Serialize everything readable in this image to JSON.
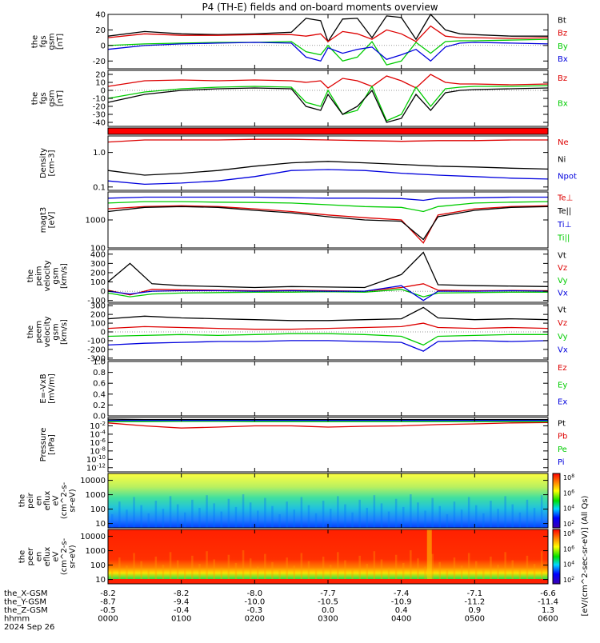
{
  "title": "P4 (TH-E) fields and on-board moments overview",
  "footer": {
    "row_labels": [
      "the_X-GSM",
      "the_Y-GSM",
      "the_Z-GSM",
      "hhmm",
      "2024 Sep 26"
    ],
    "x_gsm": [
      "-8.2",
      "-8.2",
      "-8.0",
      "-7.7",
      "-7.4",
      "-7.1",
      "-6.6"
    ],
    "y_gsm": [
      "-8.7",
      "-9.4",
      "-10.0",
      "-10.5",
      "-10.9",
      "-11.2",
      "-11.4"
    ],
    "z_gsm": [
      "-0.5",
      "-0.4",
      "-0.3",
      "0.0",
      "0.4",
      "0.9",
      "1.3"
    ],
    "hhmm": [
      "0000",
      "0100",
      "0200",
      "0300",
      "0400",
      "0500",
      "0600"
    ]
  },
  "colorbar_label": "[eV/(cm^2-sec-sr-eV)] (All Qs)",
  "colorbar_ticks": [
    "10^8",
    "10^6",
    "10^4",
    "10^2"
  ],
  "colorbar_ticks_2": [
    "10^8",
    "10^6",
    "10^4",
    "10^2"
  ],
  "colors": {
    "black": "#000000",
    "red": "#dd0000",
    "green": "#00cc00",
    "blue": "#0000dd"
  },
  "chart_data": [
    {
      "type": "line",
      "ylabel": [
        "the",
        "fgs",
        "gsm",
        "[nT]"
      ],
      "ylim": [
        -30,
        40
      ],
      "yticks": [
        "40",
        "20",
        "0",
        "-20"
      ],
      "legend": [
        {
          "name": "Bt",
          "color": "#000000"
        },
        {
          "name": "Bz",
          "color": "#dd0000"
        },
        {
          "name": "By",
          "color": "#00cc00"
        },
        {
          "name": "Bx",
          "color": "#0000dd"
        }
      ],
      "x": [
        0,
        0.5,
        1,
        1.5,
        2,
        2.5,
        2.7,
        2.9,
        3.0,
        3.2,
        3.4,
        3.6,
        3.8,
        4.0,
        4.2,
        4.4,
        4.6,
        4.8,
        5.0,
        5.5,
        6.0
      ],
      "series": [
        {
          "name": "Bt",
          "values": [
            12,
            18,
            15,
            14,
            15,
            17,
            35,
            32,
            5,
            34,
            35,
            10,
            38,
            36,
            8,
            40,
            20,
            15,
            14,
            12,
            12
          ]
        },
        {
          "name": "Bz",
          "values": [
            10,
            15,
            13,
            13,
            14,
            14,
            12,
            15,
            5,
            18,
            15,
            8,
            20,
            15,
            5,
            25,
            12,
            10,
            10,
            9,
            10
          ]
        },
        {
          "name": "By",
          "values": [
            0,
            2,
            3,
            4,
            4,
            5,
            -8,
            -12,
            0,
            -20,
            -15,
            5,
            -25,
            -20,
            4,
            -10,
            5,
            6,
            6,
            7,
            8
          ]
        },
        {
          "name": "Bx",
          "values": [
            -5,
            0,
            2,
            3,
            4,
            3,
            -15,
            -20,
            -3,
            -10,
            -5,
            -2,
            -18,
            -12,
            -5,
            -20,
            -2,
            3,
            4,
            3,
            2
          ]
        }
      ]
    },
    {
      "type": "line",
      "ylabel": [
        "the",
        "fgs",
        "gsm",
        "[nT]"
      ],
      "ylim": [
        -45,
        25
      ],
      "yticks": [
        "20",
        "10",
        "0",
        "-10",
        "-20",
        "-30",
        "-40"
      ],
      "legend": [
        {
          "name": "Bz",
          "color": "#dd0000"
        },
        {
          "name": "Bx",
          "color": "#00cc00"
        }
      ],
      "x": [
        0,
        0.5,
        1,
        1.5,
        2,
        2.5,
        2.7,
        2.9,
        3.0,
        3.2,
        3.4,
        3.6,
        3.8,
        4.0,
        4.2,
        4.4,
        4.6,
        4.8,
        5.0,
        5.5,
        6.0
      ],
      "series": [
        {
          "name": "Bz",
          "values": [
            5,
            12,
            13,
            12,
            13,
            12,
            10,
            12,
            3,
            15,
            12,
            5,
            18,
            12,
            3,
            20,
            10,
            8,
            8,
            7,
            8
          ]
        },
        {
          "name": "Bx",
          "values": [
            -10,
            -2,
            2,
            4,
            5,
            4,
            -15,
            -20,
            0,
            -30,
            -25,
            5,
            -38,
            -30,
            4,
            -20,
            2,
            4,
            5,
            5,
            6
          ]
        },
        {
          "name": "black",
          "values": [
            -15,
            -5,
            0,
            2,
            3,
            2,
            -20,
            -25,
            -5,
            -30,
            -20,
            0,
            -40,
            -35,
            -5,
            -25,
            -3,
            0,
            1,
            2,
            3
          ]
        }
      ]
    },
    {
      "type": "line",
      "ylabel": [
        "Density",
        "[cm-3]"
      ],
      "scale": "log",
      "ylim": [
        0.08,
        3
      ],
      "yticks": [
        "1.0",
        "0.1"
      ],
      "legend": [
        {
          "name": "Ne",
          "color": "#dd0000"
        },
        {
          "name": "Ni",
          "color": "#000000"
        },
        {
          "name": "Npot",
          "color": "#0000dd"
        }
      ],
      "x": [
        0,
        0.5,
        1,
        1.5,
        2,
        2.5,
        3.0,
        3.5,
        4.0,
        4.5,
        5.0,
        5.5,
        6.0
      ],
      "series": [
        {
          "name": "Ne",
          "values": [
            2.0,
            2.3,
            2.3,
            2.3,
            2.4,
            2.4,
            2.3,
            2.2,
            2.1,
            2.2,
            2.2,
            2.3,
            2.3
          ]
        },
        {
          "name": "Ni",
          "values": [
            0.3,
            0.22,
            0.25,
            0.3,
            0.4,
            0.5,
            0.55,
            0.5,
            0.45,
            0.4,
            0.38,
            0.35,
            0.33
          ]
        },
        {
          "name": "Npot",
          "values": [
            0.15,
            0.12,
            0.13,
            0.15,
            0.2,
            0.3,
            0.32,
            0.3,
            0.25,
            0.22,
            0.2,
            0.18,
            0.17
          ]
        }
      ]
    },
    {
      "type": "line",
      "ylabel": [
        "magt3",
        "[eV]"
      ],
      "scale": "log",
      "ylim": [
        100,
        10000
      ],
      "yticks": [
        "1000",
        "100"
      ],
      "legend": [
        {
          "name": "Te⊥",
          "color": "#dd0000"
        },
        {
          "name": "Te||",
          "color": "#000000"
        },
        {
          "name": "Ti⊥",
          "color": "#0000dd"
        },
        {
          "name": "Ti||",
          "color": "#00cc00"
        }
      ],
      "x": [
        0,
        0.5,
        1,
        1.5,
        2,
        2.5,
        3.0,
        3.5,
        4.0,
        4.3,
        4.5,
        5.0,
        5.5,
        6.0
      ],
      "series": [
        {
          "name": "Te⊥",
          "values": [
            2500,
            3000,
            3200,
            3000,
            2500,
            2000,
            1500,
            1200,
            1000,
            150,
            1500,
            2500,
            3000,
            3200
          ]
        },
        {
          "name": "Te||",
          "values": [
            2000,
            2800,
            3000,
            2800,
            2200,
            1800,
            1300,
            1000,
            900,
            200,
            1300,
            2200,
            2800,
            3000
          ]
        },
        {
          "name": "Ti⊥",
          "values": [
            6000,
            6500,
            6500,
            6500,
            6500,
            6200,
            6000,
            6000,
            5800,
            5000,
            6000,
            6200,
            6500,
            6500
          ]
        },
        {
          "name": "Ti||",
          "values": [
            4000,
            4500,
            4500,
            4300,
            4200,
            4000,
            3500,
            3000,
            2800,
            2000,
            3000,
            4000,
            4300,
            4500
          ]
        }
      ]
    },
    {
      "type": "line",
      "ylabel": [
        "the",
        "peim",
        "velocity",
        "gsm",
        "[km/s]"
      ],
      "ylim": [
        -120,
        450
      ],
      "yticks": [
        "400",
        "300",
        "200",
        "100",
        "0",
        "-100"
      ],
      "legend": [
        {
          "name": "Vt",
          "color": "#000000"
        },
        {
          "name": "Vz",
          "color": "#dd0000"
        },
        {
          "name": "Vy",
          "color": "#00cc00"
        },
        {
          "name": "Vx",
          "color": "#0000dd"
        }
      ],
      "x": [
        0,
        0.3,
        0.6,
        1,
        1.5,
        2,
        2.5,
        3,
        3.5,
        4.0,
        4.3,
        4.5,
        5.0,
        5.5,
        6.0
      ],
      "series": [
        {
          "name": "Vt",
          "values": [
            100,
            300,
            80,
            60,
            50,
            40,
            50,
            45,
            40,
            180,
            420,
            70,
            60,
            55,
            50
          ]
        },
        {
          "name": "Vz",
          "values": [
            10,
            -40,
            20,
            15,
            10,
            5,
            10,
            5,
            0,
            40,
            80,
            10,
            5,
            8,
            5
          ]
        },
        {
          "name": "Vy",
          "values": [
            -20,
            -60,
            -30,
            -20,
            -15,
            -10,
            -10,
            -5,
            -10,
            20,
            -60,
            -20,
            -15,
            -10,
            -10
          ]
        },
        {
          "name": "Vx",
          "values": [
            0,
            -30,
            0,
            5,
            5,
            0,
            5,
            0,
            0,
            60,
            -100,
            0,
            0,
            5,
            0
          ]
        }
      ]
    },
    {
      "type": "line",
      "ylabel": [
        "the",
        "peem",
        "velocity",
        "gsm",
        "[km/s]"
      ],
      "ylim": [
        -320,
        320
      ],
      "yticks": [
        "300",
        "200",
        "100",
        "0",
        "-100",
        "-200",
        "-300"
      ],
      "legend": [
        {
          "name": "Vt",
          "color": "#000000"
        },
        {
          "name": "Vz",
          "color": "#dd0000"
        },
        {
          "name": "Vy",
          "color": "#00cc00"
        },
        {
          "name": "Vx",
          "color": "#0000dd"
        }
      ],
      "x": [
        0,
        0.5,
        1,
        1.5,
        2,
        2.5,
        3,
        3.5,
        4.0,
        4.3,
        4.5,
        5.0,
        5.5,
        6.0
      ],
      "series": [
        {
          "name": "Vt",
          "values": [
            150,
            180,
            160,
            150,
            140,
            130,
            130,
            140,
            150,
            280,
            160,
            140,
            150,
            140
          ]
        },
        {
          "name": "Vz",
          "values": [
            40,
            60,
            50,
            40,
            30,
            30,
            40,
            50,
            60,
            100,
            50,
            40,
            50,
            40
          ]
        },
        {
          "name": "Vy",
          "values": [
            -50,
            -40,
            -30,
            -40,
            -30,
            -20,
            -20,
            -30,
            -50,
            -150,
            -50,
            -40,
            -30,
            -30
          ]
        },
        {
          "name": "Vx",
          "values": [
            -150,
            -130,
            -120,
            -110,
            -110,
            -100,
            -100,
            -110,
            -120,
            -220,
            -110,
            -100,
            -110,
            -100
          ]
        }
      ]
    },
    {
      "type": "line",
      "ylabel": [
        "E=-VxB",
        "[mV/m]"
      ],
      "ylim": [
        0,
        1.0
      ],
      "yticks": [
        "1.0",
        "0.8",
        "0.6",
        "0.4",
        "0.2",
        "0.0"
      ],
      "legend": [
        {
          "name": "Ez",
          "color": "#dd0000"
        },
        {
          "name": "Ey",
          "color": "#00cc00"
        },
        {
          "name": "Ex",
          "color": "#0000dd"
        }
      ],
      "x": [],
      "series": []
    },
    {
      "type": "line",
      "ylabel": [
        "Pressure",
        "[nPa]"
      ],
      "scale": "log",
      "ylim": [
        1e-13,
        1
      ],
      "yticks": [
        "10^-2",
        "10^-4",
        "10^-6",
        "10^-8",
        "10^-10",
        "10^-12"
      ],
      "legend": [
        {
          "name": "Pt",
          "color": "#000000"
        },
        {
          "name": "Pb",
          "color": "#dd0000"
        },
        {
          "name": "Pe",
          "color": "#00cc00"
        },
        {
          "name": "Pi",
          "color": "#0000dd"
        }
      ],
      "x": [
        0,
        0.5,
        1,
        1.5,
        2,
        2.5,
        3,
        3.5,
        4.0,
        4.5,
        5.0,
        5.5,
        6.0
      ],
      "series": [
        {
          "name": "Pt",
          "values": [
            0.4,
            0.3,
            0.3,
            0.3,
            0.3,
            0.3,
            0.3,
            0.3,
            0.3,
            0.3,
            0.3,
            0.3,
            0.3
          ]
        },
        {
          "name": "Pb",
          "values": [
            0.05,
            0.01,
            0.003,
            0.005,
            0.01,
            0.01,
            0.005,
            0.008,
            0.01,
            0.02,
            0.03,
            0.05,
            0.06
          ]
        },
        {
          "name": "Pe",
          "values": [
            0.1,
            0.1,
            0.12,
            0.12,
            0.1,
            0.1,
            0.1,
            0.1,
            0.1,
            0.1,
            0.1,
            0.1,
            0.1
          ]
        },
        {
          "name": "Pi",
          "values": [
            0.2,
            0.2,
            0.2,
            0.2,
            0.2,
            0.2,
            0.2,
            0.2,
            0.2,
            0.2,
            0.2,
            0.2,
            0.2
          ]
        }
      ]
    },
    {
      "type": "heatmap",
      "ylabel": [
        "the",
        "peir",
        "en",
        "eflux",
        "eV",
        "(cm^2-s-",
        "sr-eV)"
      ],
      "scale": "log",
      "ylim": [
        5,
        30000
      ],
      "yticks": [
        "10000",
        "1000",
        "100",
        "10"
      ]
    },
    {
      "type": "heatmap",
      "ylabel": [
        "the",
        "peer",
        "en",
        "eflux",
        "eV",
        "(cm^2-s-",
        "sr-eV)"
      ],
      "scale": "log",
      "ylim": [
        5,
        30000
      ],
      "yticks": [
        "10000",
        "1000",
        "100",
        "10"
      ]
    }
  ]
}
